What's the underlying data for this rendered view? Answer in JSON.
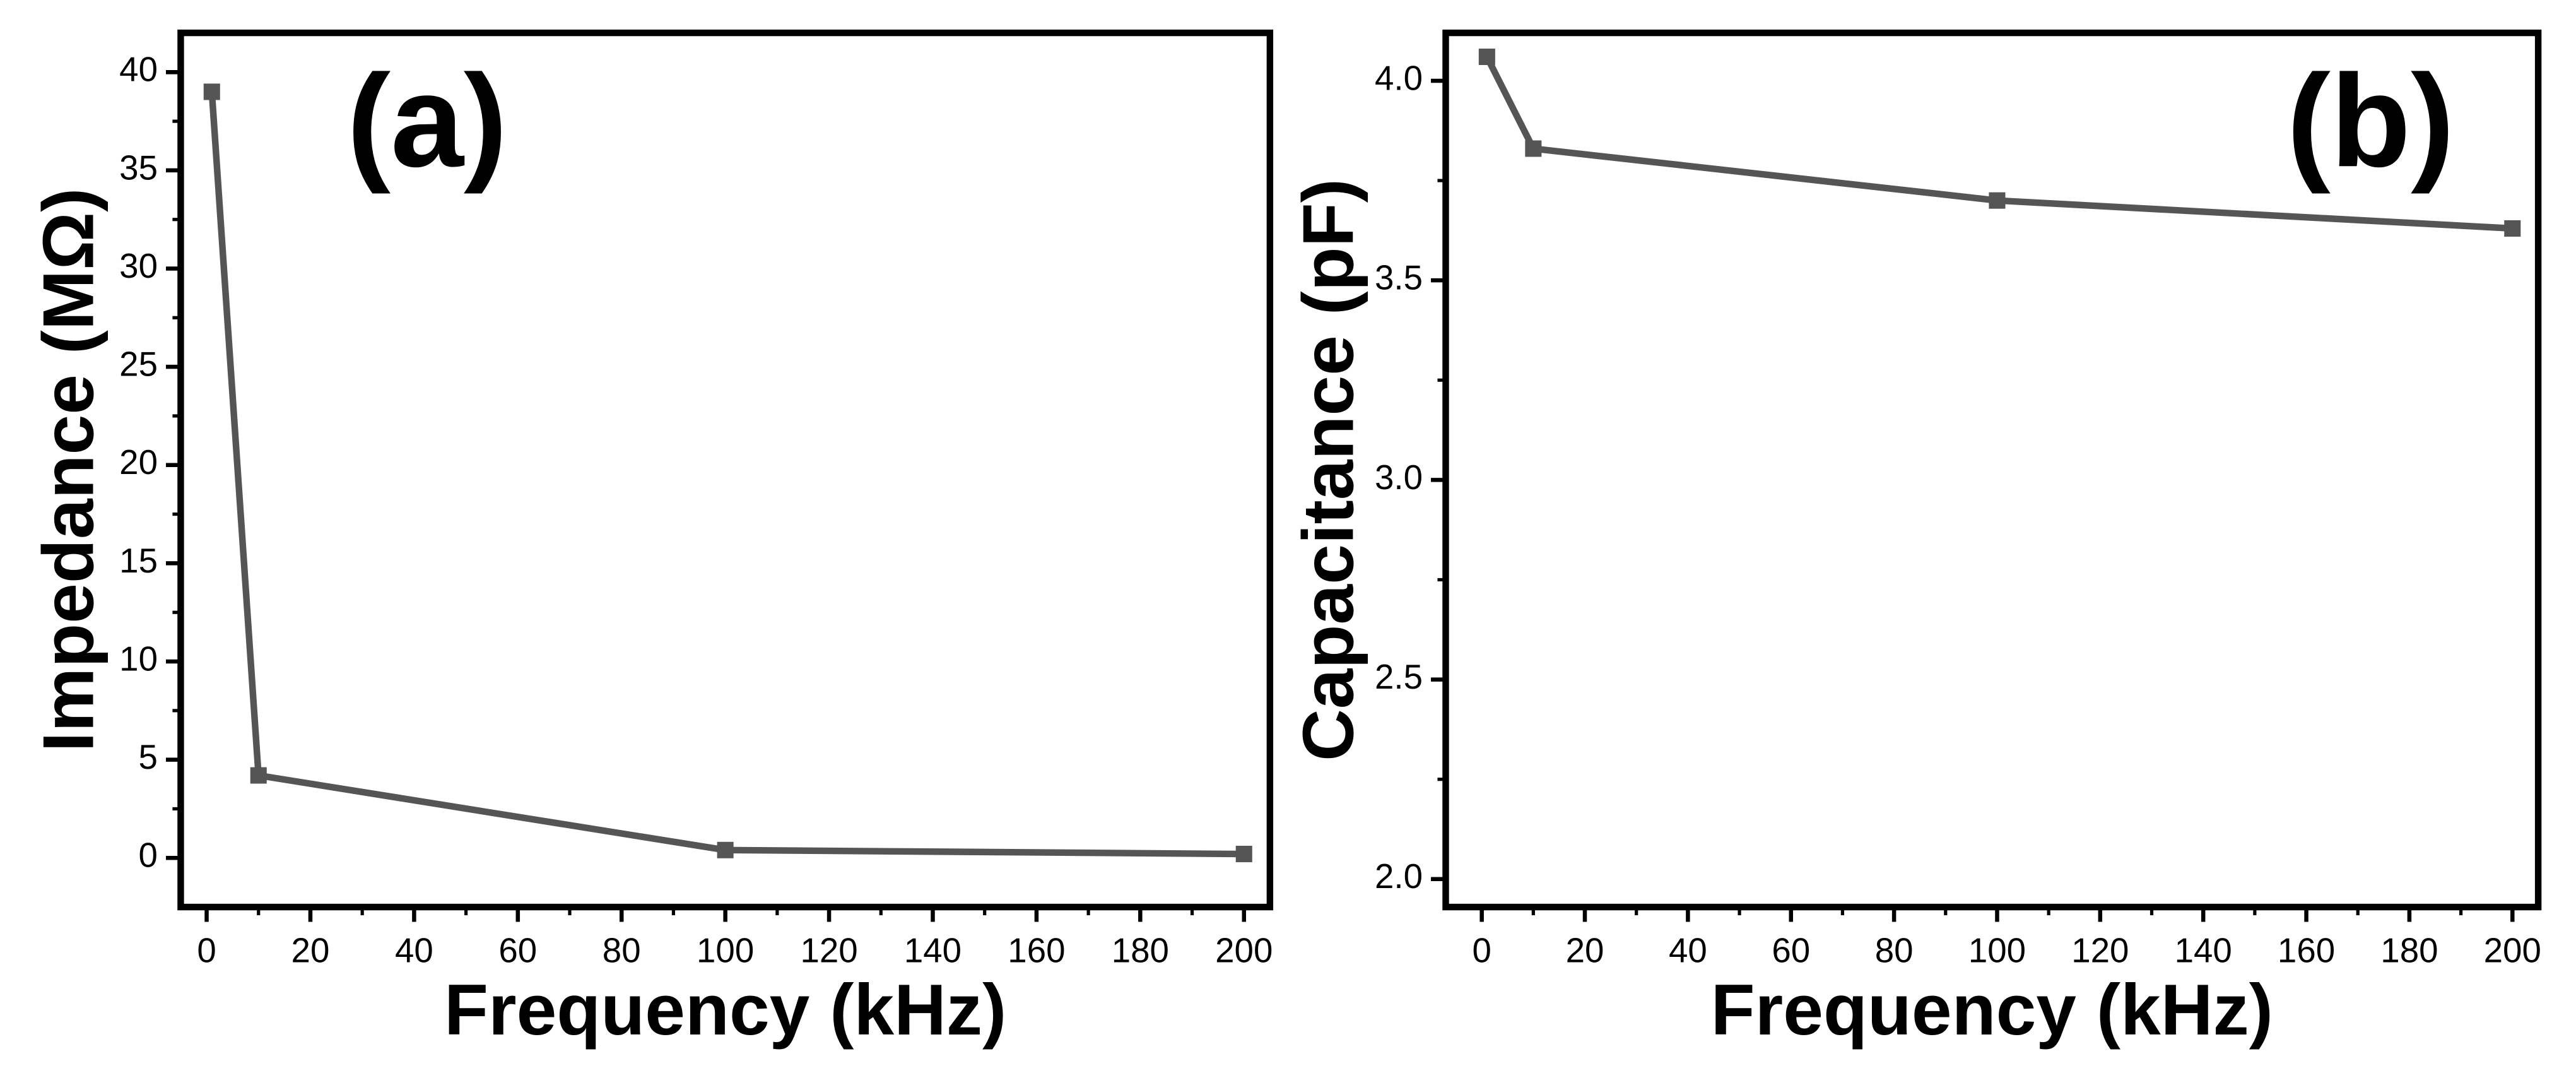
{
  "chart_data": [
    {
      "type": "line",
      "label": "(a)",
      "x_label": "Frequency (kHz)",
      "y_label": "Impedance (MΩ)",
      "x": [
        1,
        10,
        100,
        200
      ],
      "series": [
        {
          "color": "#555555",
          "values": [
            39,
            4.2,
            0.4,
            0.2
          ]
        }
      ],
      "xlim": [
        -5,
        205
      ],
      "ylim": [
        -2.5,
        42
      ],
      "xticks": [
        0,
        20,
        40,
        60,
        80,
        100,
        120,
        140,
        160,
        180,
        200
      ],
      "yticks": [
        0,
        5,
        10,
        15,
        20,
        25,
        30,
        35,
        40
      ]
    },
    {
      "type": "line",
      "label": "(b)",
      "x_label": "Frequency (kHz)",
      "y_label": "Capacitance (pF)",
      "x": [
        1,
        10,
        100,
        200
      ],
      "series": [
        {
          "color": "#555555",
          "values": [
            4.06,
            3.83,
            3.7,
            3.63
          ]
        }
      ],
      "xlim": [
        -7,
        205
      ],
      "ylim": [
        1.93,
        4.12
      ],
      "xticks": [
        0,
        20,
        40,
        60,
        80,
        100,
        120,
        140,
        160,
        180,
        200
      ],
      "yticks": [
        {
          "value": 2,
          "label": "2.0"
        },
        2.5,
        {
          "value": 3,
          "label": "3.0"
        },
        3.5,
        {
          "value": 4,
          "label": "4.0"
        }
      ]
    }
  ]
}
